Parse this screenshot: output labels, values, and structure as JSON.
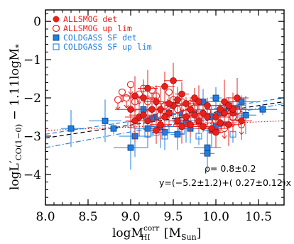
{
  "chart_data": {
    "type": "scatter",
    "xlim": [
      8.0,
      10.8
    ],
    "ylim": [
      -4.8,
      0.3
    ],
    "x_ticks": [
      "8.0",
      "8.5",
      "9.0",
      "9.5",
      "10.0",
      "10.5"
    ],
    "y_ticks": [
      "0",
      "−1",
      "−2",
      "−3",
      "−4"
    ],
    "ylabel": {
      "log": "log",
      "L": "L′",
      "sub": "CO(1−0)",
      "rest": " − 1.11log",
      "M": "M",
      "msub": "*"
    },
    "xlabel": {
      "log": "logM",
      "sup": "corr",
      "sub": "HI",
      "unit_open": " [M",
      "unit_sub": "Sun",
      "unit_close": "]"
    },
    "legend": [
      {
        "label": "ALLSMOG det",
        "color": "#e8201c",
        "marker": "filled-circle"
      },
      {
        "label": "ALLSMOG up lim",
        "color": "#e8201c",
        "marker": "open-circle"
      },
      {
        "label": "COLDGASS SF det",
        "color": "#1f7fe0",
        "marker": "filled-square"
      },
      {
        "label": "COLDGASS SF up lim",
        "color": "#1f7fe0",
        "marker": "open-square"
      }
    ],
    "annotations": {
      "rho": "ρ= 0.8±0.2",
      "fit": "y=(−5.2±1.2)+( 0.27±0.12)x"
    },
    "fit_lines": [
      {
        "style": "dotted",
        "color": "#e8201c",
        "x": [
          8.0,
          10.8
        ],
        "y": [
          -2.85,
          -2.6
        ]
      },
      {
        "style": "dashed",
        "color": "#000000",
        "x": [
          8.0,
          10.8
        ],
        "y": [
          -3.05,
          -2.1
        ]
      },
      {
        "style": "dashed",
        "color": "#1f7fe0",
        "x": [
          8.0,
          10.8
        ],
        "y": [
          -2.95,
          -2.0
        ]
      },
      {
        "style": "dash-dot",
        "color": "#1f7fe0",
        "x": [
          8.0,
          10.8
        ],
        "y": [
          -3.3,
          -2.15
        ]
      }
    ],
    "series": [
      {
        "name": "ALLSMOG det",
        "points": [
          [
            9.0,
            -2.3
          ],
          [
            9.05,
            -1.95
          ],
          [
            9.1,
            -2.5
          ],
          [
            9.15,
            -2.0
          ],
          [
            9.2,
            -2.6
          ],
          [
            9.25,
            -2.3
          ],
          [
            9.3,
            -2.1
          ],
          [
            9.35,
            -2.7
          ],
          [
            9.4,
            -1.7
          ],
          [
            9.45,
            -2.4
          ],
          [
            9.5,
            -2.2
          ],
          [
            9.55,
            -2.6
          ],
          [
            9.6,
            -1.9
          ],
          [
            9.65,
            -2.5
          ],
          [
            9.7,
            -2.3
          ],
          [
            9.75,
            -2.0
          ],
          [
            9.8,
            -2.6
          ],
          [
            9.85,
            -2.4
          ],
          [
            9.9,
            -2.2
          ],
          [
            9.95,
            -2.8
          ],
          [
            10.0,
            -2.5
          ],
          [
            10.05,
            -2.3
          ],
          [
            10.1,
            -2.1
          ],
          [
            10.15,
            -2.7
          ],
          [
            10.2,
            -2.4
          ],
          [
            10.25,
            -2.0
          ],
          [
            10.3,
            -2.6
          ],
          [
            9.2,
            -1.75
          ],
          [
            9.5,
            -1.55
          ],
          [
            9.6,
            -2.75
          ],
          [
            9.8,
            -2.1
          ],
          [
            10.0,
            -2.9
          ],
          [
            10.1,
            -2.4
          ],
          [
            9.4,
            -2.5
          ],
          [
            9.3,
            -2.85
          ],
          [
            9.55,
            -2.05
          ],
          [
            9.7,
            -2.7
          ],
          [
            9.9,
            -2.5
          ],
          [
            10.05,
            -2.65
          ],
          [
            10.2,
            -2.3
          ],
          [
            9.15,
            -2.45
          ],
          [
            9.45,
            -2.15
          ],
          [
            9.75,
            -2.45
          ],
          [
            10.15,
            -2.2
          ],
          [
            9.65,
            -2.15
          ],
          [
            9.85,
            -2.75
          ],
          [
            9.35,
            -2.3
          ],
          [
            9.05,
            -2.6
          ]
        ]
      },
      {
        "name": "ALLSMOG up lim",
        "points": [
          [
            8.9,
            -1.85
          ],
          [
            8.95,
            -2.0
          ],
          [
            9.0,
            -1.65
          ],
          [
            9.05,
            -2.1
          ],
          [
            9.1,
            -1.9
          ],
          [
            9.2,
            -2.1
          ],
          [
            9.25,
            -1.8
          ],
          [
            9.3,
            -1.95
          ],
          [
            9.4,
            -2.2
          ],
          [
            9.45,
            -1.85
          ],
          [
            9.5,
            -2.05
          ],
          [
            9.55,
            -2.3
          ],
          [
            9.6,
            -2.1
          ],
          [
            9.65,
            -2.4
          ],
          [
            9.75,
            -2.25
          ],
          [
            9.8,
            -2.5
          ],
          [
            9.9,
            -2.35
          ],
          [
            10.0,
            -2.6
          ],
          [
            10.1,
            -2.8
          ],
          [
            10.2,
            -2.5
          ],
          [
            10.3,
            -2.7
          ],
          [
            8.85,
            -2.05
          ],
          [
            9.15,
            -1.75
          ],
          [
            9.7,
            -2.15
          ],
          [
            9.35,
            -2.45
          ],
          [
            10.25,
            -2.35
          ]
        ]
      },
      {
        "name": "COLDGASS SF det",
        "points": [
          [
            8.8,
            -2.8
          ],
          [
            9.0,
            -3.3
          ],
          [
            8.7,
            -2.6
          ],
          [
            9.05,
            -3.0
          ],
          [
            9.15,
            -2.3
          ],
          [
            9.2,
            -2.8
          ],
          [
            9.3,
            -2.5
          ],
          [
            9.4,
            -2.9
          ],
          [
            9.5,
            -2.2
          ],
          [
            9.55,
            -2.6
          ],
          [
            9.6,
            -2.4
          ],
          [
            9.7,
            -2.8
          ],
          [
            9.75,
            -2.3
          ],
          [
            9.8,
            -2.6
          ],
          [
            9.85,
            -2.1
          ],
          [
            9.9,
            -3.45
          ],
          [
            9.95,
            -2.5
          ],
          [
            10.0,
            -2.0
          ],
          [
            10.05,
            -2.4
          ],
          [
            10.1,
            -2.7
          ],
          [
            10.15,
            -2.2
          ],
          [
            10.2,
            -2.5
          ],
          [
            10.25,
            -2.3
          ],
          [
            10.3,
            -2.1
          ],
          [
            10.55,
            -2.3
          ],
          [
            9.9,
            -3.3
          ],
          [
            9.35,
            -2.75
          ],
          [
            9.45,
            -2.4
          ],
          [
            9.65,
            -2.65
          ],
          [
            10.35,
            -2.45
          ],
          [
            8.3,
            -2.8
          ],
          [
            9.25,
            -2.55
          ],
          [
            9.95,
            -2.85
          ],
          [
            10.1,
            -2.35
          ],
          [
            9.55,
            -2.95
          ],
          [
            10.0,
            -2.75
          ]
        ]
      },
      {
        "name": "COLDGASS SF up lim",
        "points": [
          [
            9.0,
            -2.7
          ],
          [
            9.3,
            -2.9
          ],
          [
            9.4,
            -3.0
          ],
          [
            9.6,
            -2.85
          ],
          [
            9.8,
            -3.0
          ],
          [
            10.0,
            -2.8
          ],
          [
            10.2,
            -2.95
          ],
          [
            9.2,
            -2.95
          ]
        ]
      }
    ]
  }
}
